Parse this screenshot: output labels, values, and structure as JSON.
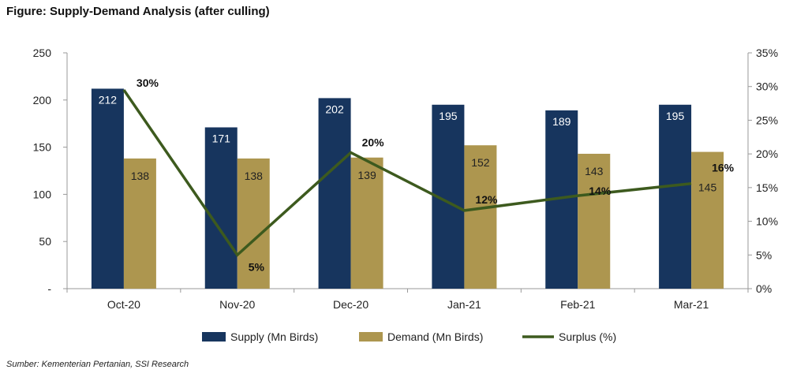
{
  "title": "Figure: Supply-Demand Analysis (after culling)",
  "source": "Sumber: Kementerian Pertanian, SSI Research",
  "chart_data": {
    "type": "bar",
    "categories": [
      "Oct-20",
      "Nov-20",
      "Dec-20",
      "Jan-21",
      "Feb-21",
      "Mar-21"
    ],
    "series": [
      {
        "name": "Supply (Mn Birds)",
        "type": "bar",
        "axis": "left",
        "color": "#17355e",
        "values": [
          212,
          171,
          202,
          195,
          189,
          195
        ],
        "labels": [
          "212",
          "171",
          "202",
          "195",
          "189",
          "195"
        ]
      },
      {
        "name": "Demand (Mn Birds)",
        "type": "bar",
        "axis": "left",
        "color": "#ad964f",
        "values": [
          138,
          138,
          139,
          152,
          143,
          145
        ],
        "labels": [
          "138",
          "138",
          "139",
          "152",
          "143",
          "145"
        ]
      },
      {
        "name": "Surplus (%)",
        "type": "line",
        "axis": "right",
        "color": "#3d5a1e",
        "values": [
          29.5,
          5.0,
          20.2,
          11.6,
          13.8,
          15.6
        ],
        "labels": [
          "30%",
          "5%",
          "20%",
          "12%",
          "14%",
          "16%"
        ]
      }
    ],
    "left_axis": {
      "ylim": [
        0,
        250
      ],
      "ticks": [
        "-",
        "50",
        "100",
        "150",
        "200",
        "250"
      ]
    },
    "right_axis": {
      "ylim": [
        0,
        35
      ],
      "ticks": [
        "0%",
        "5%",
        "10%",
        "15%",
        "20%",
        "25%",
        "30%",
        "35%"
      ]
    },
    "grid": false,
    "legend": "bottom"
  }
}
